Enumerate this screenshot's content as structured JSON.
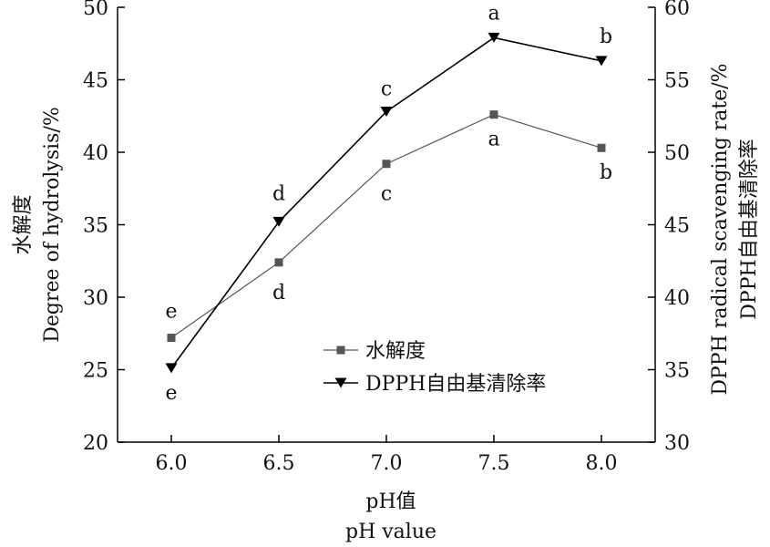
{
  "chart_data": {
    "type": "line",
    "x": [
      6.0,
      6.5,
      7.0,
      7.5,
      8.0
    ],
    "x_tick_labels": [
      "6.0",
      "6.5",
      "7.0",
      "7.5",
      "8.0"
    ],
    "xlim": [
      5.75,
      8.25
    ],
    "xlabel": [
      "pH值",
      "pH value"
    ],
    "left_axis": {
      "label": [
        "水解度",
        "Degree of hydrolysis/%"
      ],
      "ylim": [
        20,
        50
      ],
      "ticks": [
        20,
        25,
        30,
        35,
        40,
        45,
        50
      ]
    },
    "right_axis": {
      "label": [
        "DPPH radical scavenging rate/%",
        "DPPH自由基清除率"
      ],
      "ylim": [
        30,
        60
      ],
      "ticks": [
        30,
        35,
        40,
        45,
        50,
        55,
        60
      ]
    },
    "series": [
      {
        "name": "水解度",
        "axis": "left",
        "marker": "square",
        "color": "#555555",
        "values": [
          27.2,
          32.4,
          39.2,
          42.6,
          40.3
        ],
        "labels": [
          "e",
          "d",
          "c",
          "a",
          "b"
        ]
      },
      {
        "name": "DPPH自由基清除率",
        "axis": "right",
        "marker": "triangle-down",
        "color": "#000000",
        "values": [
          35.1,
          45.2,
          52.8,
          57.9,
          56.3
        ],
        "labels": [
          "e",
          "d",
          "c",
          "a",
          "b"
        ]
      }
    ],
    "legend": "center-bottom",
    "grid": false
  }
}
